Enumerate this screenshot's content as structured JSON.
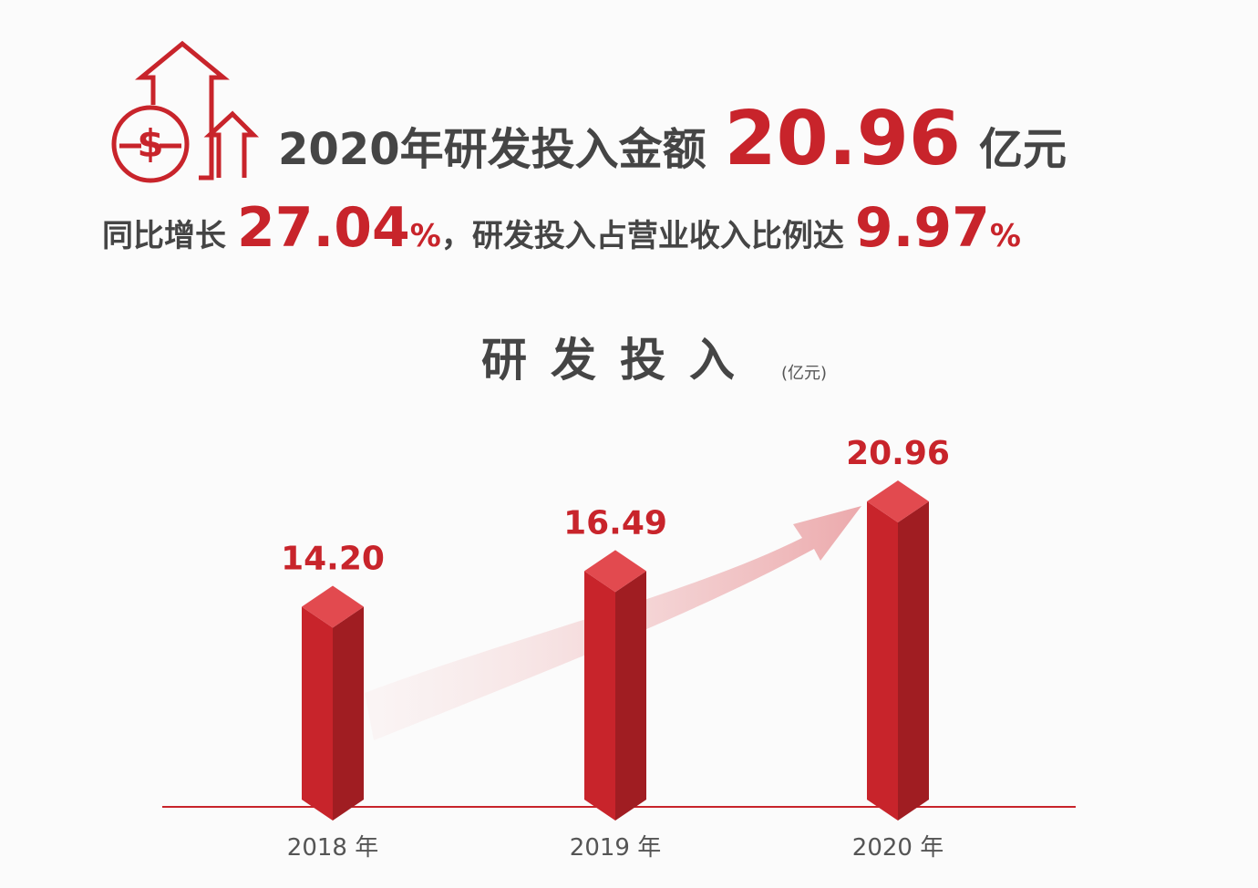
{
  "header": {
    "line1": {
      "lead": "2020年研发投入金额",
      "amount": "20.96",
      "unit": "亿元"
    },
    "line2": {
      "lead": "同比增长",
      "growth": "27.04",
      "growth_unit": "%",
      "middle": "，研发投入占营业收入比例达",
      "ratio": "9.97",
      "ratio_unit": "%"
    }
  },
  "chart_data": {
    "type": "bar3d",
    "title": "研发投入",
    "unit": "(亿元)",
    "categories": [
      "2018 年",
      "2019 年",
      "2020 年"
    ],
    "values": [
      14.2,
      16.49,
      20.96
    ],
    "value_labels": [
      "14.20",
      "16.49",
      "20.96"
    ],
    "color": "#c8242b"
  }
}
